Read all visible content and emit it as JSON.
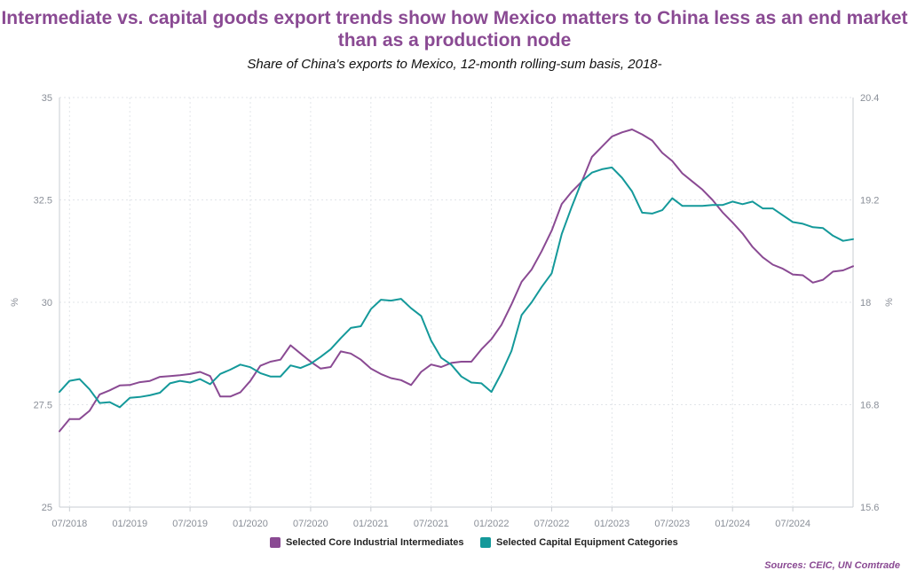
{
  "chart_data": {
    "type": "line",
    "title": "Intermediate vs. capital goods export trends show how Mexico matters to China less as an end market than as a production node",
    "subtitle": "Share of China's exports to Mexico, 12-month rolling-sum basis, 2018-",
    "source": "Sources: CEIC, UN Comtrade",
    "x_tick_labels": [
      "07/2018",
      "01/2019",
      "07/2019",
      "01/2020",
      "07/2020",
      "01/2021",
      "07/2021",
      "01/2022",
      "07/2022",
      "01/2023",
      "07/2023",
      "01/2024",
      "07/2024"
    ],
    "y_left": {
      "unit": "%",
      "ylim": [
        25,
        35
      ],
      "ticks": [
        "25",
        "27.5",
        "30",
        "32.5",
        "35"
      ]
    },
    "y_right": {
      "unit": "%",
      "ylim": [
        15.6,
        20.4
      ],
      "ticks": [
        "15.6",
        "16.8",
        "18",
        "19.2",
        "20.4"
      ]
    },
    "start_month": "06/2018",
    "series": [
      {
        "name": "Selected Core Industrial Intermediates",
        "axis": "left",
        "color": "#8a4a93",
        "values": [
          26.85,
          27.15,
          27.15,
          27.35,
          27.75,
          27.85,
          27.97,
          27.98,
          28.05,
          28.08,
          28.18,
          28.2,
          28.22,
          28.25,
          28.3,
          28.2,
          27.7,
          27.7,
          27.8,
          28.08,
          28.45,
          28.55,
          28.6,
          28.95,
          28.75,
          28.55,
          28.38,
          28.42,
          28.8,
          28.75,
          28.6,
          28.38,
          28.25,
          28.15,
          28.1,
          27.98,
          28.3,
          28.48,
          28.42,
          28.52,
          28.55,
          28.55,
          28.85,
          29.1,
          29.45,
          29.95,
          30.5,
          30.8,
          31.25,
          31.75,
          32.4,
          32.7,
          32.95,
          33.55,
          33.8,
          34.05,
          34.15,
          34.22,
          34.1,
          33.95,
          33.65,
          33.45,
          33.15,
          32.95,
          32.75,
          32.5,
          32.2,
          31.95,
          31.68,
          31.35,
          31.1,
          30.92,
          30.82,
          30.68,
          30.66,
          30.48,
          30.55,
          30.75,
          30.78,
          30.88
        ]
      },
      {
        "name": "Selected Capital Equipment Categories",
        "axis": "right",
        "color": "#14999a",
        "values": [
          16.95,
          17.08,
          17.1,
          16.98,
          16.82,
          16.83,
          16.77,
          16.88,
          16.89,
          16.91,
          16.94,
          17.05,
          17.08,
          17.06,
          17.1,
          17.04,
          17.16,
          17.21,
          17.27,
          17.24,
          17.17,
          17.13,
          17.13,
          17.26,
          17.23,
          17.28,
          17.36,
          17.45,
          17.58,
          17.7,
          17.72,
          17.92,
          18.03,
          18.02,
          18.04,
          17.93,
          17.84,
          17.55,
          17.35,
          17.27,
          17.13,
          17.06,
          17.05,
          16.95,
          17.17,
          17.43,
          17.85,
          18.0,
          18.18,
          18.34,
          18.8,
          19.12,
          19.42,
          19.52,
          19.56,
          19.58,
          19.46,
          19.3,
          19.05,
          19.04,
          19.08,
          19.22,
          19.13,
          19.13,
          19.13,
          19.14,
          19.14,
          19.18,
          19.15,
          19.18,
          19.1,
          19.1,
          19.02,
          18.94,
          18.92,
          18.88,
          18.87,
          18.78,
          18.72,
          18.74
        ]
      }
    ]
  }
}
